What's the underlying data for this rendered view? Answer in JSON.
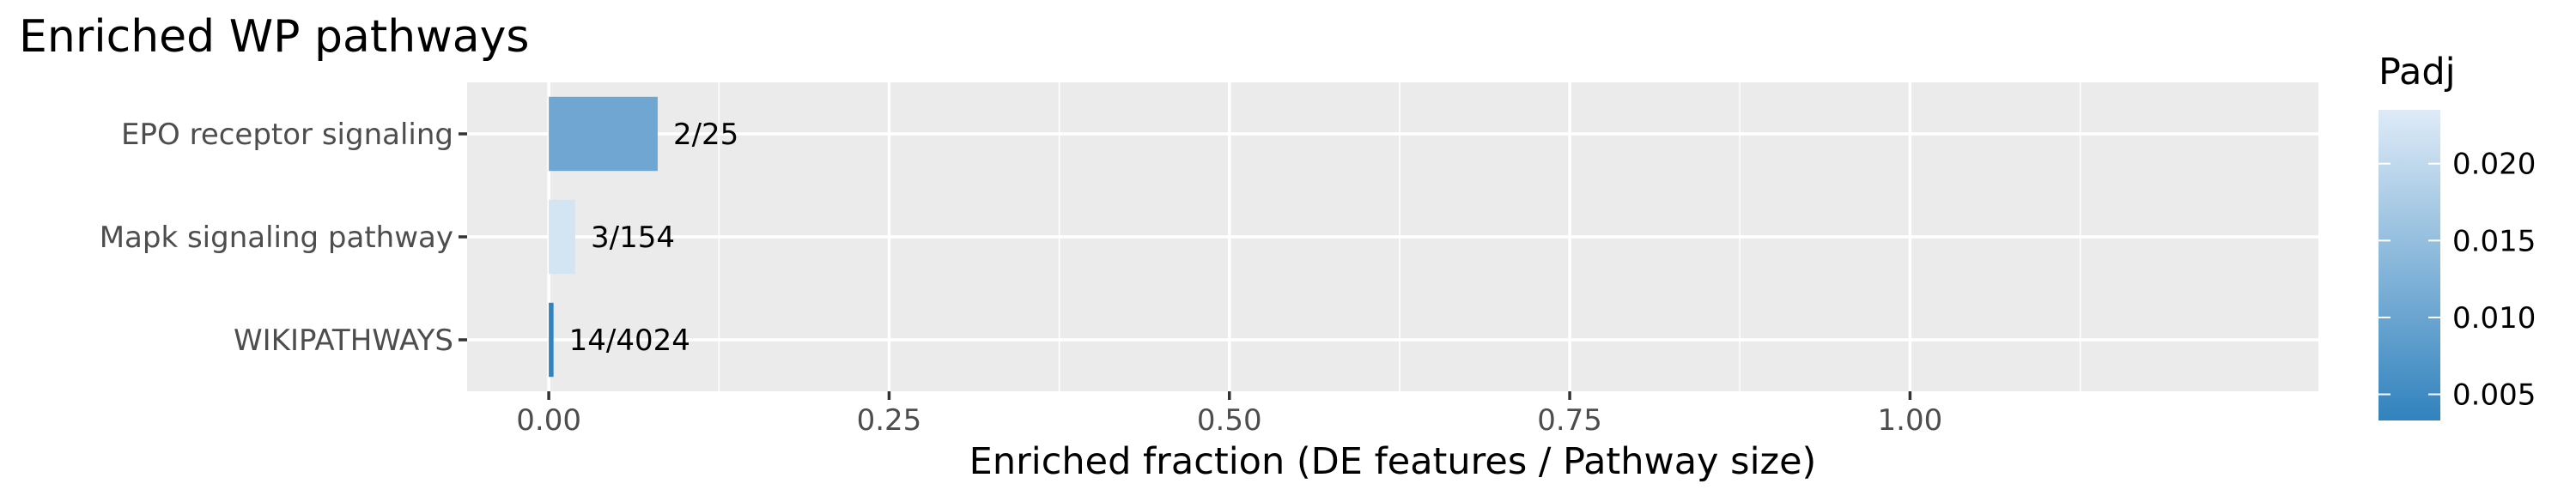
{
  "chart_data": {
    "type": "bar",
    "orientation": "horizontal",
    "title": "Enriched WP pathways",
    "xlabel": "Enriched fraction (DE features / Pathway size)",
    "ylabel": "",
    "xlim": [
      -0.06,
      1.3
    ],
    "x_ticks": [
      "0.00",
      "0.25",
      "0.50",
      "0.75",
      "1.00"
    ],
    "x_tick_values": [
      0,
      0.25,
      0.5,
      0.75,
      1.0
    ],
    "x_minor_tick_values": [
      0.125,
      0.375,
      0.625,
      0.875,
      1.125
    ],
    "grid": true,
    "categories": [
      "EPO receptor signaling",
      "Mapk signaling pathway",
      "WIKIPATHWAYS"
    ],
    "values": [
      0.08,
      0.0195,
      0.00348
    ],
    "bar_labels": [
      "2/25",
      "3/154",
      "14/4024"
    ],
    "padj": [
      0.0105,
      0.0222,
      0.0033
    ],
    "legend": {
      "title": "Padj",
      "position": "right",
      "range": [
        0.0033,
        0.0235
      ],
      "ticks": [
        "0.005",
        "0.010",
        "0.015",
        "0.020"
      ],
      "tick_values": [
        0.005,
        0.01,
        0.015,
        0.02
      ],
      "color_low": "#3182bd",
      "color_high": "#deebf7"
    }
  }
}
